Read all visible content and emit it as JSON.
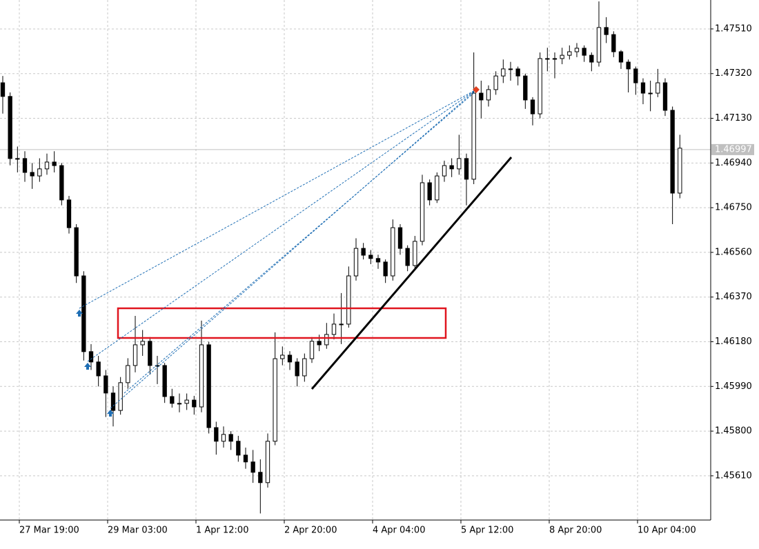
{
  "chart_data": {
    "type": "candlestick",
    "xlim": [
      -0.375,
      96.19
    ],
    "ylim": [
      1.45422,
      1.47633
    ],
    "xticks": [
      {
        "value": 2.25,
        "label": "27 Mar 19:00"
      },
      {
        "value": 14.25,
        "label": "29 Mar 03:00"
      },
      {
        "value": 26.25,
        "label": "1 Apr 12:00"
      },
      {
        "value": 38.25,
        "label": "2 Apr 20:00"
      },
      {
        "value": 50.25,
        "label": "4 Apr 04:00"
      },
      {
        "value": 62.25,
        "label": "5 Apr 12:00"
      },
      {
        "value": 74.25,
        "label": "8 Apr 20:00"
      },
      {
        "value": 86.25,
        "label": "10 Apr 04:00"
      }
    ],
    "yticks": [
      {
        "value": 1.4751,
        "label": "1.47510"
      },
      {
        "value": 1.4732,
        "label": "1.47320"
      },
      {
        "value": 1.4713,
        "label": "1.47130"
      },
      {
        "value": 1.4694,
        "label": "1.46940"
      },
      {
        "value": 1.4675,
        "label": "1.46750"
      },
      {
        "value": 1.4656,
        "label": "1.46560"
      },
      {
        "value": 1.4637,
        "label": "1.46370"
      },
      {
        "value": 1.4618,
        "label": "1.46180"
      },
      {
        "value": 1.4599,
        "label": "1.45990"
      },
      {
        "value": 1.458,
        "label": "1.45800"
      },
      {
        "value": 1.4561,
        "label": "1.45610"
      }
    ],
    "grid": true,
    "color": "#000000",
    "bull_fill": "#ffffff",
    "current_price": 1.46997,
    "candles": [
      [
        1.47281,
        1.4731,
        1.4715,
        1.47223
      ],
      [
        1.47223,
        1.4724,
        1.4693,
        1.46959
      ],
      [
        1.46959,
        1.4701,
        1.469,
        1.46959
      ],
      [
        1.46959,
        1.4699,
        1.4686,
        1.469
      ],
      [
        1.469,
        1.4694,
        1.4683,
        1.46885
      ],
      [
        1.46885,
        1.4696,
        1.4686,
        1.46915
      ],
      [
        1.46915,
        1.4698,
        1.4689,
        1.46944
      ],
      [
        1.46944,
        1.4699,
        1.469,
        1.46929
      ],
      [
        1.46929,
        1.4694,
        1.4676,
        1.46783
      ],
      [
        1.46783,
        1.468,
        1.4664,
        1.46665
      ],
      [
        1.46665,
        1.4668,
        1.4643,
        1.4646
      ],
      [
        1.4646,
        1.4648,
        1.461,
        1.46138
      ],
      [
        1.46138,
        1.4617,
        1.4606,
        1.46094
      ],
      [
        1.46094,
        1.4612,
        1.4599,
        1.46035
      ],
      [
        1.46035,
        1.4606,
        1.4586,
        1.45962
      ],
      [
        1.45962,
        1.4599,
        1.4582,
        1.45888
      ],
      [
        1.45888,
        1.4603,
        1.4587,
        1.46006
      ],
      [
        1.46006,
        1.4611,
        1.4598,
        1.46079
      ],
      [
        1.46079,
        1.4629,
        1.4605,
        1.46167
      ],
      [
        1.46167,
        1.4623,
        1.4612,
        1.46182
      ],
      [
        1.46182,
        1.462,
        1.4604,
        1.46079
      ],
      [
        1.46079,
        1.4612,
        1.46,
        1.46079
      ],
      [
        1.46079,
        1.4609,
        1.4592,
        1.45947
      ],
      [
        1.45947,
        1.4598,
        1.459,
        1.45918
      ],
      [
        1.45918,
        1.4596,
        1.4588,
        1.45918
      ],
      [
        1.45918,
        1.4596,
        1.4589,
        1.45932
      ],
      [
        1.45932,
        1.4595,
        1.4587,
        1.45903
      ],
      [
        1.45903,
        1.4627,
        1.4588,
        1.46167
      ],
      [
        1.46167,
        1.4618,
        1.4579,
        1.45815
      ],
      [
        1.45815,
        1.4584,
        1.457,
        1.45757
      ],
      [
        1.45757,
        1.4582,
        1.4573,
        1.45786
      ],
      [
        1.45786,
        1.458,
        1.4572,
        1.45757
      ],
      [
        1.45757,
        1.4578,
        1.4567,
        1.45698
      ],
      [
        1.45698,
        1.4573,
        1.4564,
        1.45669
      ],
      [
        1.45669,
        1.4572,
        1.4558,
        1.45625
      ],
      [
        1.45625,
        1.4568,
        1.4545,
        1.45581
      ],
      [
        1.45581,
        1.4579,
        1.4556,
        1.45757
      ],
      [
        1.45757,
        1.4622,
        1.4574,
        1.46108
      ],
      [
        1.46108,
        1.4616,
        1.4608,
        1.46123
      ],
      [
        1.46123,
        1.4614,
        1.4606,
        1.46094
      ],
      [
        1.46094,
        1.4611,
        1.4599,
        1.46035
      ],
      [
        1.46035,
        1.4613,
        1.4601,
        1.46108
      ],
      [
        1.46108,
        1.462,
        1.4609,
        1.46182
      ],
      [
        1.46182,
        1.4621,
        1.4614,
        1.46167
      ],
      [
        1.46167,
        1.4626,
        1.4615,
        1.46211
      ],
      [
        1.46211,
        1.463,
        1.4619,
        1.46255
      ],
      [
        1.46255,
        1.46387,
        1.4617,
        1.46255
      ],
      [
        1.46255,
        1.465,
        1.4624,
        1.4646
      ],
      [
        1.4646,
        1.4662,
        1.4644,
        1.46577
      ],
      [
        1.46577,
        1.466,
        1.4653,
        1.46548
      ],
      [
        1.46548,
        1.4657,
        1.4651,
        1.46534
      ],
      [
        1.46534,
        1.4655,
        1.4649,
        1.46519
      ],
      [
        1.46519,
        1.4653,
        1.4643,
        1.4646
      ],
      [
        1.4646,
        1.467,
        1.4644,
        1.46665
      ],
      [
        1.46665,
        1.4668,
        1.4655,
        1.46577
      ],
      [
        1.46577,
        1.4659,
        1.4648,
        1.46504
      ],
      [
        1.46504,
        1.4663,
        1.4649,
        1.46607
      ],
      [
        1.46607,
        1.4689,
        1.4659,
        1.46856
      ],
      [
        1.46856,
        1.4687,
        1.4676,
        1.46783
      ],
      [
        1.46783,
        1.469,
        1.4677,
        1.46885
      ],
      [
        1.46885,
        1.4695,
        1.4686,
        1.46929
      ],
      [
        1.46929,
        1.4696,
        1.4688,
        1.46915
      ],
      [
        1.46915,
        1.4706,
        1.4689,
        1.46959
      ],
      [
        1.46959,
        1.4698,
        1.4676,
        1.46871
      ],
      [
        1.46871,
        1.4741,
        1.4685,
        1.47237
      ],
      [
        1.47237,
        1.4729,
        1.4713,
        1.47208
      ],
      [
        1.47208,
        1.4727,
        1.4718,
        1.47252
      ],
      [
        1.47252,
        1.4733,
        1.4723,
        1.4731
      ],
      [
        1.4731,
        1.4738,
        1.4728,
        1.4734
      ],
      [
        1.4734,
        1.4737,
        1.4729,
        1.4734
      ],
      [
        1.4734,
        1.4735,
        1.4727,
        1.4731
      ],
      [
        1.4731,
        1.4732,
        1.4717,
        1.47208
      ],
      [
        1.47208,
        1.4722,
        1.471,
        1.47149
      ],
      [
        1.47149,
        1.4741,
        1.4713,
        1.47384
      ],
      [
        1.47384,
        1.4743,
        1.4733,
        1.47384
      ],
      [
        1.47384,
        1.4741,
        1.473,
        1.47384
      ],
      [
        1.47384,
        1.4743,
        1.4736,
        1.47398
      ],
      [
        1.47398,
        1.4744,
        1.4738,
        1.47413
      ],
      [
        1.47413,
        1.4745,
        1.4739,
        1.47428
      ],
      [
        1.47428,
        1.4744,
        1.4737,
        1.47398
      ],
      [
        1.47398,
        1.4741,
        1.4733,
        1.47369
      ],
      [
        1.47369,
        1.47627,
        1.4735,
        1.47516
      ],
      [
        1.47516,
        1.4756,
        1.4745,
        1.47486
      ],
      [
        1.47486,
        1.475,
        1.4739,
        1.47413
      ],
      [
        1.47413,
        1.4742,
        1.4734,
        1.47369
      ],
      [
        1.47369,
        1.4738,
        1.4724,
        1.4734
      ],
      [
        1.4734,
        1.4735,
        1.4723,
        1.47281
      ],
      [
        1.47281,
        1.473,
        1.4719,
        1.47237
      ],
      [
        1.47237,
        1.4729,
        1.4716,
        1.47237
      ],
      [
        1.47237,
        1.4734,
        1.4722,
        1.47281
      ],
      [
        1.47281,
        1.473,
        1.4714,
        1.47164
      ],
      [
        1.47164,
        1.4718,
        1.4668,
        1.46812
      ],
      [
        1.46812,
        1.4706,
        1.4679,
        1.47003
      ]
    ]
  }
}
